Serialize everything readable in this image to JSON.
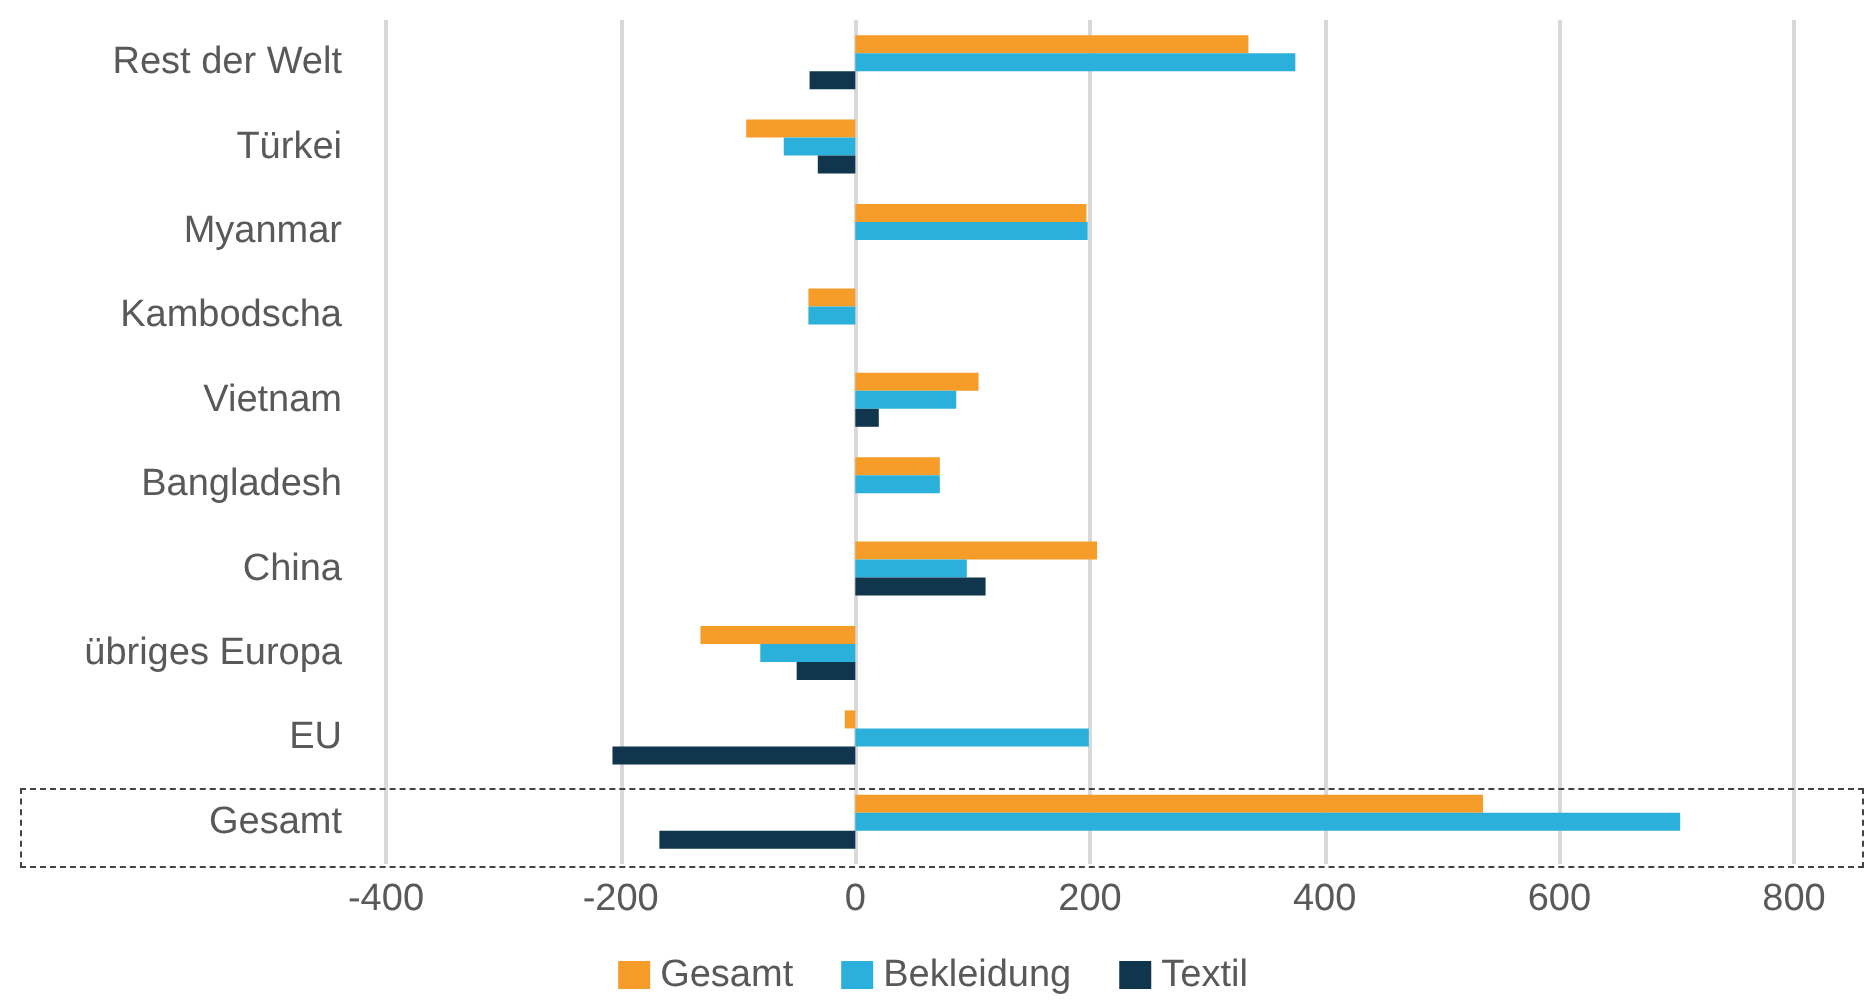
{
  "chart_data": {
    "type": "bar",
    "orientation": "horizontal",
    "categories": [
      "Rest der Welt",
      "Türkei",
      "Myanmar",
      "Kambodscha",
      "Vietnam",
      "Bangladesh",
      "China",
      "übriges Europa",
      "EU",
      "Gesamt"
    ],
    "series": [
      {
        "name": "Gesamt",
        "color": "#f59d28",
        "values": [
          335,
          -93,
          197,
          -40,
          105,
          72,
          206,
          -132,
          -9,
          535
        ]
      },
      {
        "name": "Bekleidung",
        "color": "#2bb0db",
        "values": [
          375,
          -61,
          198,
          -40,
          86,
          72,
          95,
          -81,
          199,
          703
        ]
      },
      {
        "name": "Textil",
        "color": "#0f364d",
        "values": [
          -39,
          -32,
          0,
          0,
          20,
          0,
          111,
          -50,
          -207,
          -167
        ]
      }
    ],
    "xlim": [
      -400,
      800
    ],
    "xticks": [
      -400,
      -200,
      0,
      200,
      400,
      600,
      800
    ],
    "grid": "x",
    "legend": "bottom"
  }
}
